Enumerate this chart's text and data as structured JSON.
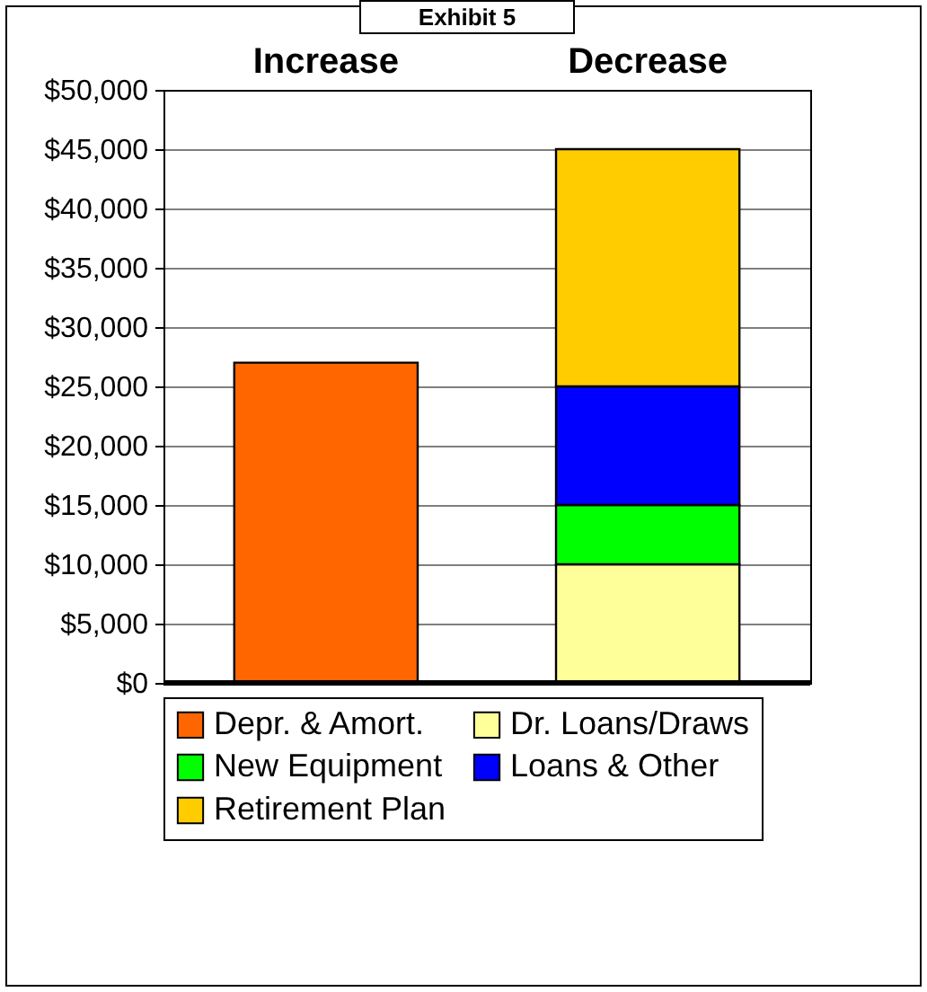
{
  "chart_data": {
    "type": "bar",
    "title": "Exhibit 5",
    "stacked": true,
    "categories": [
      "Increase",
      "Decrease"
    ],
    "series": [
      {
        "name": "Depr. & Amort.",
        "color": "#ff6600",
        "values": [
          27000,
          null
        ]
      },
      {
        "name": "Dr. Loans/Draws",
        "color": "#ffff99",
        "values": [
          null,
          10000
        ]
      },
      {
        "name": "New Equipment",
        "color": "#00ff00",
        "values": [
          null,
          5000
        ]
      },
      {
        "name": "Loans & Other",
        "color": "#0000ff",
        "values": [
          null,
          10000
        ]
      },
      {
        "name": "Retirement Plan",
        "color": "#ffcc00",
        "values": [
          null,
          20000
        ]
      }
    ],
    "ylim": [
      0,
      50000
    ],
    "yticks": [
      {
        "value": 0,
        "label": "$0"
      },
      {
        "value": 5000,
        "label": "$5,000"
      },
      {
        "value": 10000,
        "label": "$10,000"
      },
      {
        "value": 15000,
        "label": "$15,000"
      },
      {
        "value": 20000,
        "label": "$20,000"
      },
      {
        "value": 25000,
        "label": "$25,000"
      },
      {
        "value": 30000,
        "label": "$30,000"
      },
      {
        "value": 35000,
        "label": "$35,000"
      },
      {
        "value": 40000,
        "label": "$40,000"
      },
      {
        "value": 45000,
        "label": "$45,000"
      },
      {
        "value": 50000,
        "label": "$50,000"
      }
    ],
    "grid": "y",
    "legend": "bottom"
  }
}
